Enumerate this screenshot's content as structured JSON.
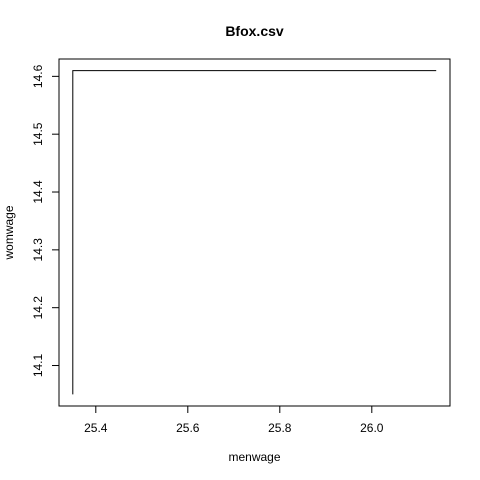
{
  "chart_data": {
    "type": "line",
    "title": "Bfox.csv",
    "xlabel": "menwage",
    "ylabel": "womwage",
    "x_ticks": [
      25.4,
      25.6,
      25.8,
      26.0
    ],
    "x_tick_labels": [
      "25.4",
      "25.6",
      "25.8",
      "26.0"
    ],
    "y_ticks": [
      14.1,
      14.2,
      14.3,
      14.4,
      14.5,
      14.6
    ],
    "y_tick_labels": [
      "14.1",
      "14.2",
      "14.3",
      "14.4",
      "14.5",
      "14.6"
    ],
    "xlim": [
      25.32,
      26.17
    ],
    "ylim": [
      14.03,
      14.63
    ],
    "grid": false,
    "series": [
      {
        "x": [
          25.35,
          25.35,
          26.14
        ],
        "y": [
          14.05,
          14.61,
          14.61
        ]
      }
    ],
    "line_color": "#000000"
  }
}
